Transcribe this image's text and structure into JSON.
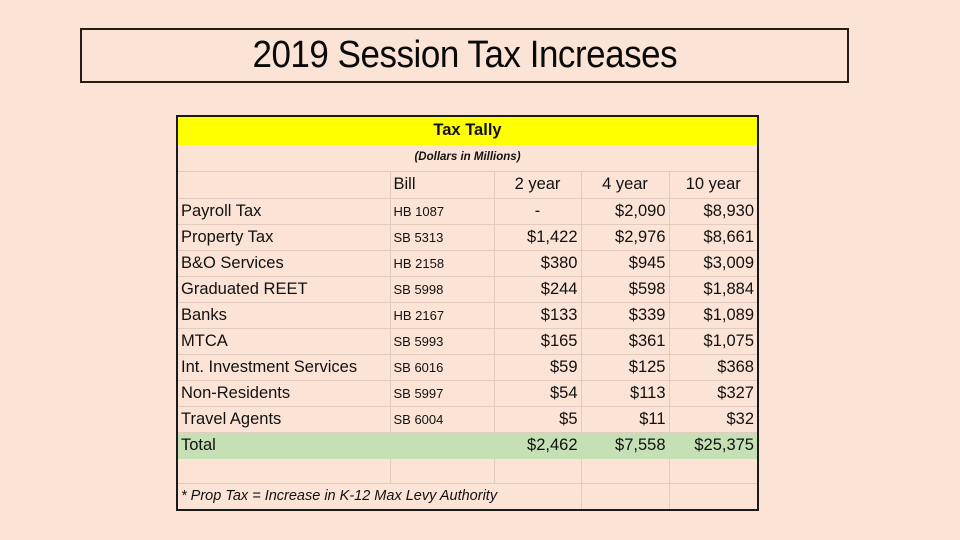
{
  "slide": {
    "title": "2019 Session Tax Increases"
  },
  "table": {
    "banner": "Tax Tally",
    "subtitle": "(Dollars in Millions)",
    "headers": {
      "name": "",
      "bill": "Bill",
      "y2": "2 year",
      "y4": "4 year",
      "y10": "10 year"
    },
    "rows": [
      {
        "name": "Payroll Tax",
        "bill": "HB 1087",
        "y2": "-",
        "y4": "$2,090",
        "y10": "$8,930"
      },
      {
        "name": "Property Tax",
        "bill": "SB 5313",
        "y2": "$1,422",
        "y4": "$2,976",
        "y10": "$8,661"
      },
      {
        "name": "B&O Services",
        "bill": "HB 2158",
        "y2": "$380",
        "y4": "$945",
        "y10": "$3,009"
      },
      {
        "name": "Graduated REET",
        "bill": "SB 5998",
        "y2": "$244",
        "y4": "$598",
        "y10": "$1,884"
      },
      {
        "name": "Banks",
        "bill": "HB 2167",
        "y2": "$133",
        "y4": "$339",
        "y10": "$1,089"
      },
      {
        "name": "MTCA",
        "bill": "SB 5993",
        "y2": "$165",
        "y4": "$361",
        "y10": "$1,075"
      },
      {
        "name": "Int. Investment Services",
        "bill": "SB 6016",
        "y2": "$59",
        "y4": "$125",
        "y10": "$368"
      },
      {
        "name": "Non-Residents",
        "bill": "SB 5997",
        "y2": "$54",
        "y4": "$113",
        "y10": "$327"
      },
      {
        "name": "Travel Agents",
        "bill": "SB 6004",
        "y2": "$5",
        "y4": "$11",
        "y10": "$32"
      }
    ],
    "total": {
      "label": "Total",
      "y2": "$2,462",
      "y4": "$7,558",
      "y10": "$25,375"
    },
    "footnote": "* Prop Tax = Increase in K-12 Max Levy Authority"
  },
  "colors": {
    "background": "#fbe3d6",
    "banner": "#ffff00",
    "total_row": "#c5e0b4"
  }
}
